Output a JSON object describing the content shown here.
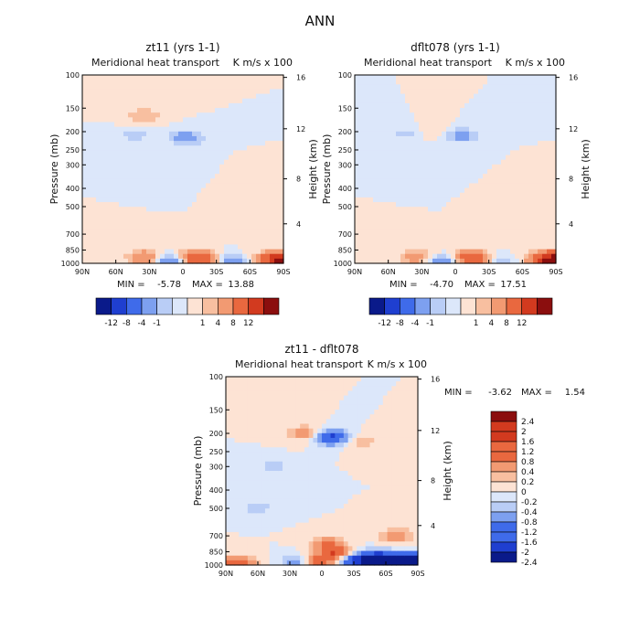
{
  "figure_title": "ANN",
  "colors": {
    "neg5": "#0a1a8a",
    "neg4": "#1f3fd0",
    "neg3": "#3f6bea",
    "neg2": "#7da0f0",
    "neg1": "#b9cdf6",
    "neg0": "#dce7fa",
    "pos0": "#fde3d4",
    "pos1": "#f8bfa0",
    "pos2": "#f29a72",
    "pos3": "#e9683f",
    "pos4": "#d23a1f",
    "pos5": "#8b0e0e",
    "frame": "#000000"
  },
  "chart_data": [
    {
      "type": "heatmap",
      "panel": "top-left",
      "title": "zt11 (yrs 1-1)",
      "subtitle": "Meridional heat transport",
      "units": "K m/s x 100",
      "xlabel": "",
      "ylabel": "Pressure (mb)",
      "y2label": "Height (km)",
      "x_ticks": [
        "90N",
        "60N",
        "30N",
        "0",
        "30S",
        "60S",
        "90S"
      ],
      "y_ticks": [
        "100",
        "150",
        "200",
        "250",
        "300",
        "400",
        "500",
        "700",
        "850",
        "1000"
      ],
      "y2_ticks": [
        "16",
        "12",
        "8",
        "4"
      ],
      "min_label": "MIN =",
      "min_value": "-5.78",
      "max_label": "MAX =",
      "max_value": "13.88",
      "colorbar_labels": [
        "-12",
        "-8",
        "-4",
        "-1",
        "1",
        "4",
        "8",
        "12"
      ],
      "features": [
        {
          "lat": 43,
          "p": 210,
          "v": -1.5
        },
        {
          "lat": 35,
          "p": 165,
          "v": 2
        },
        {
          "lat": -3,
          "p": 215,
          "v": -3
        },
        {
          "lat": -15,
          "p": 310,
          "v": -1
        },
        {
          "lat": -48,
          "p": 330,
          "v": 0.8
        },
        {
          "lat": 33,
          "p": 930,
          "v": 4
        },
        {
          "lat": 10,
          "p": 970,
          "v": -5
        },
        {
          "lat": -10,
          "p": 935,
          "v": 6
        },
        {
          "lat": -20,
          "p": 960,
          "v": 3
        },
        {
          "lat": -45,
          "p": 965,
          "v": -4
        },
        {
          "lat": -55,
          "p": 935,
          "v": 1.2
        },
        {
          "lat": -87,
          "p": 960,
          "v": 13
        },
        {
          "lat": 80,
          "p": 880,
          "v": 0.5
        }
      ]
    },
    {
      "type": "heatmap",
      "panel": "top-right",
      "title": "dflt078 (yrs 1-1)",
      "subtitle": "Meridional heat transport",
      "units": "K m/s x 100",
      "xlabel": "",
      "ylabel": "Pressure (mb)",
      "y2label": "Height (km)",
      "x_ticks": [
        "90N",
        "60N",
        "30N",
        "0",
        "30S",
        "60S",
        "90S"
      ],
      "y_ticks": [
        "100",
        "150",
        "200",
        "250",
        "300",
        "400",
        "500",
        "700",
        "850",
        "1000"
      ],
      "y2_ticks": [
        "16",
        "12",
        "8",
        "4"
      ],
      "min_label": "MIN =",
      "min_value": "-4.70",
      "max_label": "MAX =",
      "max_value": "17.51",
      "colorbar_labels": [
        "-12",
        "-8",
        "-4",
        "-1",
        "1",
        "4",
        "8",
        "12"
      ],
      "features": [
        {
          "lat": 43,
          "p": 205,
          "v": -1.5
        },
        {
          "lat": 20,
          "p": 200,
          "v": 1.2
        },
        {
          "lat": -5,
          "p": 210,
          "v": -2.8
        },
        {
          "lat": -15,
          "p": 300,
          "v": -1
        },
        {
          "lat": -48,
          "p": 330,
          "v": 0.8
        },
        {
          "lat": 33,
          "p": 930,
          "v": 3.5
        },
        {
          "lat": 10,
          "p": 975,
          "v": -4.5
        },
        {
          "lat": -10,
          "p": 935,
          "v": 5.5
        },
        {
          "lat": -25,
          "p": 950,
          "v": 2.5
        },
        {
          "lat": -42,
          "p": 960,
          "v": -3
        },
        {
          "lat": -55,
          "p": 935,
          "v": 1.2
        },
        {
          "lat": -87,
          "p": 960,
          "v": 16
        },
        {
          "lat": 80,
          "p": 880,
          "v": 0.5
        }
      ]
    },
    {
      "type": "heatmap",
      "panel": "bottom",
      "title": "zt11 - dflt078",
      "subtitle": "Meridional heat transport",
      "units": "K m/s x 100",
      "xlabel": "",
      "ylabel": "Pressure (mb)",
      "y2label": "Height (km)",
      "x_ticks": [
        "90N",
        "60N",
        "30N",
        "0",
        "30S",
        "60S",
        "90S"
      ],
      "y_ticks": [
        "100",
        "150",
        "200",
        "250",
        "300",
        "400",
        "500",
        "700",
        "850",
        "1000"
      ],
      "y2_ticks": [
        "16",
        "12",
        "8",
        "4"
      ],
      "min_label": "MIN =",
      "min_value": "-3.62",
      "max_label": "MAX =",
      "max_value": "1.54",
      "colorbar_labels": [
        "2.4",
        "2",
        "1.6",
        "1.2",
        "0.8",
        "0.4",
        "0.2",
        "0",
        "-0.2",
        "-0.4",
        "-0.8",
        "-1.2",
        "-1.6",
        "-2",
        "-2.4"
      ],
      "features": [
        {
          "lat": 15,
          "p": 200,
          "v": 0.6
        },
        {
          "lat": -10,
          "p": 210,
          "v": -1.4
        },
        {
          "lat": -35,
          "p": 220,
          "v": 0.4
        },
        {
          "lat": 45,
          "p": 300,
          "v": -0.3
        },
        {
          "lat": 60,
          "p": 500,
          "v": -0.3
        },
        {
          "lat": -5,
          "p": 780,
          "v": 0.8
        },
        {
          "lat": -15,
          "p": 880,
          "v": 1.2
        },
        {
          "lat": 5,
          "p": 960,
          "v": 1.2
        },
        {
          "lat": -30,
          "p": 940,
          "v": -1.6
        },
        {
          "lat": -55,
          "p": 930,
          "v": -2.2
        },
        {
          "lat": 20,
          "p": 965,
          "v": -0.8
        },
        {
          "lat": 80,
          "p": 980,
          "v": 1.2
        },
        {
          "lat": -85,
          "p": 960,
          "v": -3.4
        },
        {
          "lat": -70,
          "p": 700,
          "v": 0.6
        }
      ]
    }
  ]
}
